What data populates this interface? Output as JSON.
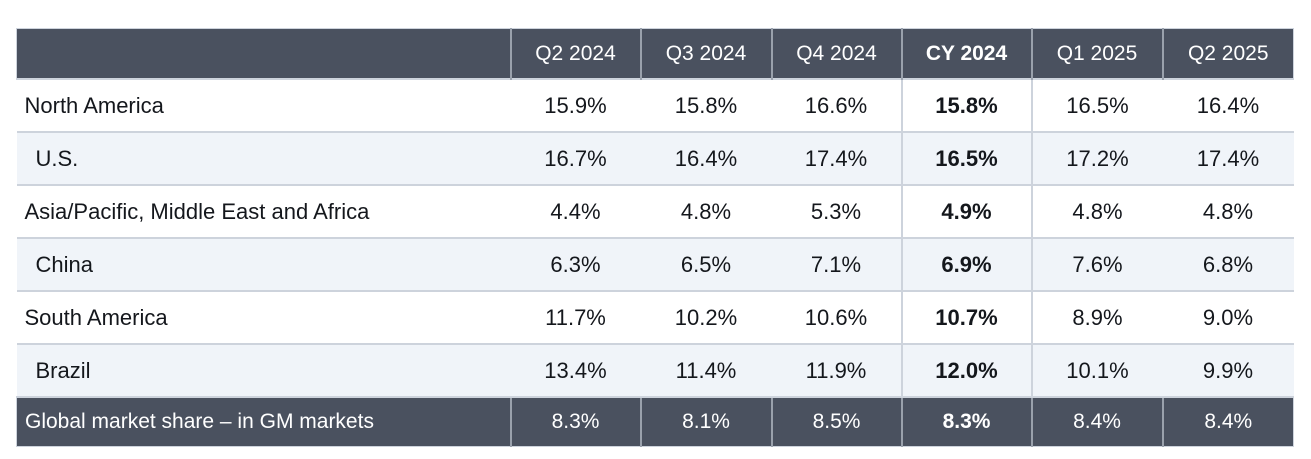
{
  "table": {
    "region_header": "",
    "columns": [
      {
        "label": "Q2 2024",
        "bold": false
      },
      {
        "label": "Q3 2024",
        "bold": false
      },
      {
        "label": "Q4 2024",
        "bold": false
      },
      {
        "label": "CY 2024",
        "bold": true
      },
      {
        "label": "Q1 2025",
        "bold": false
      },
      {
        "label": "Q2 2025",
        "bold": false
      }
    ],
    "rows": [
      {
        "region": "North America",
        "indent": false,
        "values": [
          "15.9%",
          "15.8%",
          "16.6%",
          "15.8%",
          "16.5%",
          "16.4%"
        ]
      },
      {
        "region": "U.S.",
        "indent": true,
        "values": [
          "16.7%",
          "16.4%",
          "17.4%",
          "16.5%",
          "17.2%",
          "17.4%"
        ]
      },
      {
        "region": "Asia/Pacific, Middle East and Africa",
        "indent": false,
        "values": [
          "4.4%",
          "4.8%",
          "5.3%",
          "4.9%",
          "4.8%",
          "4.8%"
        ]
      },
      {
        "region": "China",
        "indent": true,
        "values": [
          "6.3%",
          "6.5%",
          "7.1%",
          "6.9%",
          "7.6%",
          "6.8%"
        ]
      },
      {
        "region": "South America",
        "indent": false,
        "values": [
          "11.7%",
          "10.2%",
          "10.6%",
          "10.7%",
          "8.9%",
          "9.0%"
        ]
      },
      {
        "region": "Brazil",
        "indent": true,
        "values": [
          "13.4%",
          "11.4%",
          "11.9%",
          "12.0%",
          "10.1%",
          "9.9%"
        ]
      }
    ],
    "footer": {
      "label": "Global market share – in GM markets",
      "values": [
        "8.3%",
        "8.1%",
        "8.5%",
        "8.3%",
        "8.4%",
        "8.4%"
      ]
    }
  },
  "colors": {
    "header_bg": "#4A515F",
    "footer_bg": "#4A515F",
    "alt_row_bg": "#F0F4F9",
    "grid_light": "#CDD3DC",
    "grid_dark": "#9AA1AC",
    "text_dark": "#14171C",
    "text_light": "#FFFFFF"
  },
  "chart_data": {
    "type": "table",
    "columns": [
      "",
      "Q2 2024",
      "Q3 2024",
      "Q4 2024",
      "CY 2024",
      "Q1 2025",
      "Q2 2025"
    ],
    "rows": [
      [
        "North America",
        "15.9%",
        "15.8%",
        "16.6%",
        "15.8%",
        "16.5%",
        "16.4%"
      ],
      [
        "U.S.",
        "16.7%",
        "16.4%",
        "17.4%",
        "16.5%",
        "17.2%",
        "17.4%"
      ],
      [
        "Asia/Pacific, Middle East and Africa",
        "4.4%",
        "4.8%",
        "5.3%",
        "4.9%",
        "4.8%",
        "4.8%"
      ],
      [
        "China",
        "6.3%",
        "6.5%",
        "7.1%",
        "6.9%",
        "7.6%",
        "6.8%"
      ],
      [
        "South America",
        "11.7%",
        "10.2%",
        "10.6%",
        "10.7%",
        "8.9%",
        "9.0%"
      ],
      [
        "Brazil",
        "13.4%",
        "11.4%",
        "11.9%",
        "12.0%",
        "10.1%",
        "9.9%"
      ],
      [
        "Global market share – in GM markets",
        "8.3%",
        "8.1%",
        "8.5%",
        "8.3%",
        "8.4%",
        "8.4%"
      ]
    ],
    "notes": "Bold column CY 2024 is a calendar-year summary; sub-rows U.S., China and Brazil are indented under their regions; last row is a dark summary band.",
    "layout": {
      "bold_column_index": 4,
      "shaded_row_indices": [
        1,
        3,
        5
      ],
      "summary_row_index": 6
    }
  }
}
